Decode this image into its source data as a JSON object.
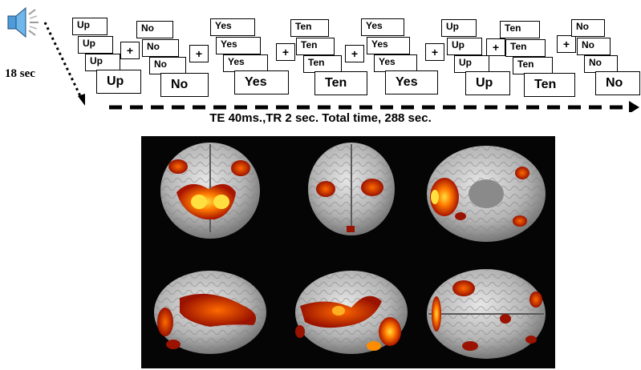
{
  "timing_label": "18 sec",
  "scan_parameters": "TE 40ms.,TR 2 sec. Total time, 288 sec.",
  "colors": {
    "activation_core": "#ffd21a",
    "activation_mid": "#ff6a00",
    "activation_edge": "#a81400",
    "brain": "#c8c8c8",
    "panel_bg": "#050505"
  },
  "icons": {
    "speaker": "speaker-icon"
  },
  "stimulus_groups": [
    {
      "words": [
        "Up",
        "Up",
        "Up",
        "Up"
      ]
    },
    {
      "words": [
        "No",
        "No",
        "No",
        "No"
      ]
    },
    {
      "words": [
        "Yes",
        "Yes",
        "Yes",
        "Yes"
      ]
    },
    {
      "words": [
        "Ten",
        "Ten",
        "Ten",
        "Ten"
      ]
    },
    {
      "words": [
        "Yes",
        "Yes",
        "Yes",
        "Yes"
      ]
    },
    {
      "words": [
        "Up",
        "Up",
        "Up",
        "Up"
      ]
    },
    {
      "words": [
        "Ten",
        "Ten",
        "Ten",
        "Ten"
      ]
    },
    {
      "words": [
        "No",
        "No",
        "No",
        "No"
      ]
    }
  ],
  "fixation_symbol": "+",
  "brain_views": [
    "posterior",
    "anterior",
    "inferior",
    "left-lateral",
    "right-lateral",
    "superior"
  ]
}
